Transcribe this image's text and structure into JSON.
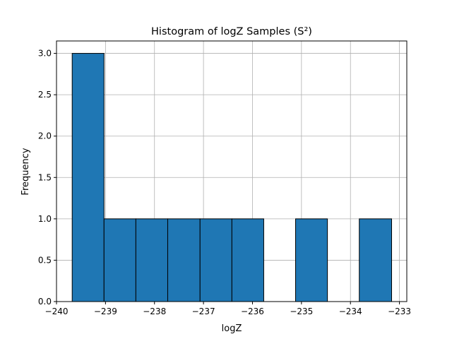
{
  "chart_data": {
    "type": "bar",
    "title": "Histogram of logZ Samples (S²)",
    "xlabel": "logZ",
    "ylabel": "Frequency",
    "xlim": [
      -240.0,
      -232.85
    ],
    "ylim": [
      0,
      3.15
    ],
    "grid": true,
    "bar_color": "#1f77b4",
    "edge_color": "#000000",
    "grid_color": "#b0b0b0",
    "bins": [
      {
        "x0": -239.68,
        "x1": -239.03,
        "value": 3
      },
      {
        "x0": -239.03,
        "x1": -238.38,
        "value": 1
      },
      {
        "x0": -238.38,
        "x1": -237.73,
        "value": 1
      },
      {
        "x0": -237.73,
        "x1": -237.07,
        "value": 1
      },
      {
        "x0": -237.07,
        "x1": -236.42,
        "value": 1
      },
      {
        "x0": -236.42,
        "x1": -235.77,
        "value": 1
      },
      {
        "x0": -235.77,
        "x1": -235.12,
        "value": 0
      },
      {
        "x0": -235.12,
        "x1": -234.47,
        "value": 1
      },
      {
        "x0": -234.47,
        "x1": -233.82,
        "value": 0
      },
      {
        "x0": -233.82,
        "x1": -233.16,
        "value": 1
      }
    ],
    "xticks": [
      {
        "value": -240,
        "label": "−240"
      },
      {
        "value": -239,
        "label": "−239"
      },
      {
        "value": -238,
        "label": "−238"
      },
      {
        "value": -237,
        "label": "−237"
      },
      {
        "value": -236,
        "label": "−236"
      },
      {
        "value": -235,
        "label": "−235"
      },
      {
        "value": -234,
        "label": "−234"
      },
      {
        "value": -233,
        "label": "−233"
      }
    ],
    "yticks": [
      {
        "value": 0.0,
        "label": "0.0"
      },
      {
        "value": 0.5,
        "label": "0.5"
      },
      {
        "value": 1.0,
        "label": "1.0"
      },
      {
        "value": 1.5,
        "label": "1.5"
      },
      {
        "value": 2.0,
        "label": "2.0"
      },
      {
        "value": 2.5,
        "label": "2.5"
      },
      {
        "value": 3.0,
        "label": "3.0"
      }
    ]
  }
}
